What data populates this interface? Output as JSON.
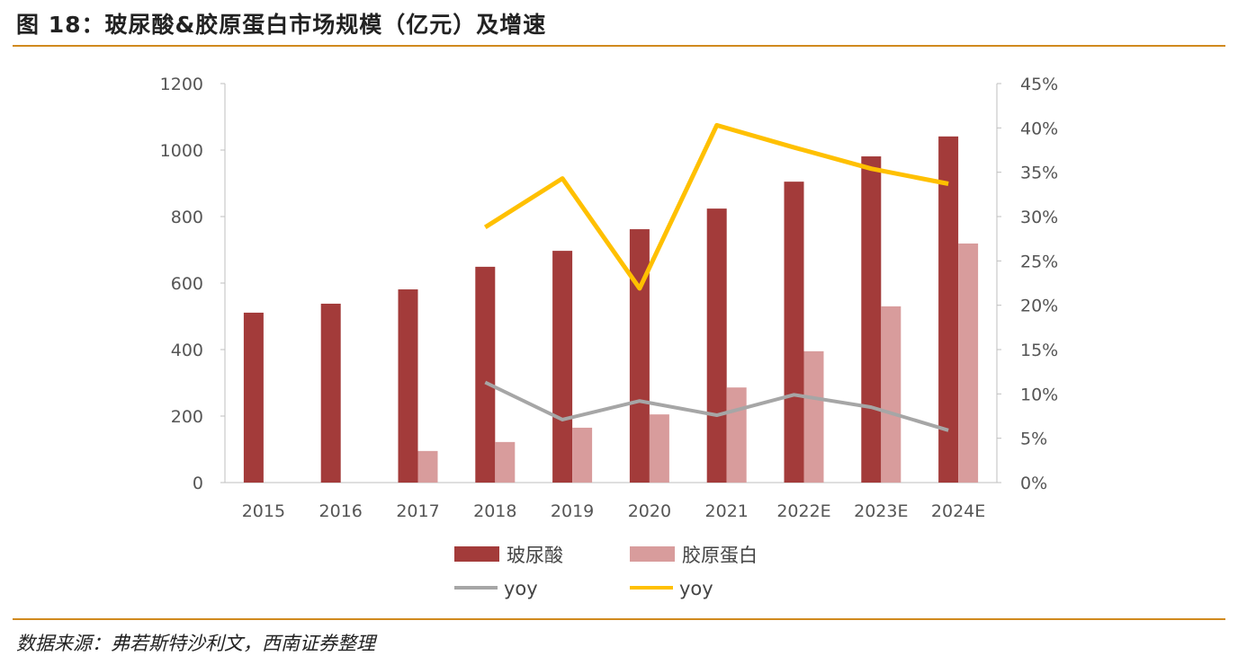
{
  "title": "图 18：玻尿酸&胶原蛋白市场规模（亿元）及增速",
  "source": "数据来源：弗若斯特沙利文，西南证券整理",
  "chart_data": {
    "type": "bar",
    "categories": [
      "2015",
      "2016",
      "2017",
      "2018",
      "2019",
      "2020",
      "2021",
      "2022E",
      "2023E",
      "2024E"
    ],
    "ylim": [
      0,
      1200
    ],
    "yticks": [
      "0",
      "200",
      "400",
      "600",
      "800",
      "1000",
      "1200"
    ],
    "y2lim": [
      0,
      45
    ],
    "y2ticks": [
      "0%",
      "5%",
      "10%",
      "15%",
      "20%",
      "25%",
      "30%",
      "35%",
      "40%",
      "45%"
    ],
    "grid": false,
    "legend_position": "bottom",
    "series": [
      {
        "name": "玻尿酸",
        "type": "bar",
        "axis": "left",
        "color": "#a33b3a",
        "values": [
          511,
          538,
          581,
          649,
          697,
          762,
          824,
          905,
          981,
          1041
        ]
      },
      {
        "name": "胶原蛋白",
        "type": "bar",
        "axis": "left",
        "color": "#d89c9c",
        "values": [
          null,
          null,
          95,
          122,
          165,
          205,
          286,
          395,
          530,
          719
        ]
      },
      {
        "name": "yoy",
        "type": "line",
        "axis": "right",
        "color": "#a6a6a6",
        "values": [
          null,
          null,
          null,
          11.3,
          7.1,
          9.2,
          7.6,
          9.9,
          8.5,
          5.9
        ]
      },
      {
        "name": "yoy",
        "type": "line",
        "axis": "right",
        "color": "#ffc000",
        "values": [
          null,
          null,
          null,
          28.8,
          34.3,
          21.9,
          40.3,
          37.8,
          35.4,
          33.7
        ]
      }
    ]
  }
}
